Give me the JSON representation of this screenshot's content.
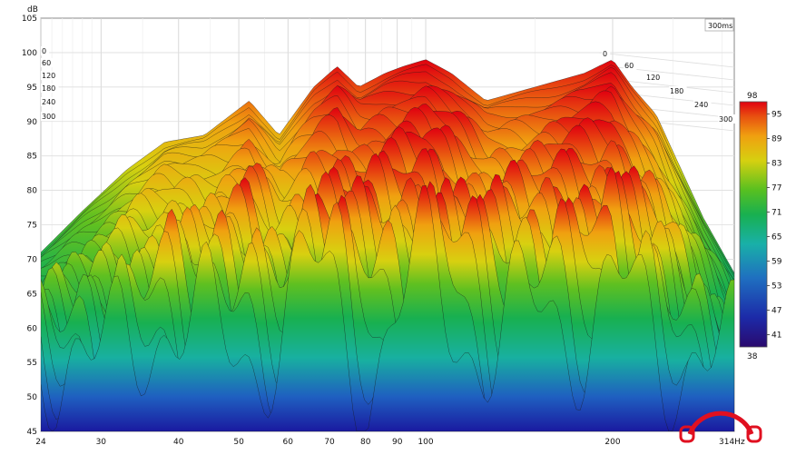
{
  "chart_data": {
    "type": "waterfall-3d",
    "ylabel": "dB",
    "ylim": [
      45,
      105
    ],
    "y_ticks": [
      "105",
      "100",
      "95",
      "90",
      "85",
      "80",
      "75",
      "70",
      "65",
      "60",
      "55",
      "50",
      "45"
    ],
    "xscale": "log",
    "xlim": [
      24,
      314
    ],
    "x_ticks": [
      {
        "label": "24",
        "value": 24
      },
      {
        "label": "30",
        "value": 30
      },
      {
        "label": "40",
        "value": 40
      },
      {
        "label": "50",
        "value": 50
      },
      {
        "label": "60",
        "value": 60
      },
      {
        "label": "70",
        "value": 70
      },
      {
        "label": "80",
        "value": 80
      },
      {
        "label": "90",
        "value": 90
      },
      {
        "label": "100",
        "value": 100
      },
      {
        "label": "200",
        "value": 200
      }
    ],
    "x_end_label": "314Hz",
    "time_range_label": "300ms",
    "time_labels_left": [
      "0",
      "60",
      "120",
      "180",
      "240",
      "300"
    ],
    "time_labels_right": [
      "0",
      "60",
      "120",
      "180",
      "240",
      "300"
    ],
    "colorbar": {
      "max_label": "98",
      "min_label": "38",
      "tick_labels": [
        "95",
        "89",
        "83",
        "77",
        "71",
        "65",
        "59",
        "53",
        "47",
        "41"
      ],
      "range": [
        38,
        98
      ],
      "colors": [
        "#2a0a6e",
        "#1c2aa8",
        "#1f6fc0",
        "#19b0a8",
        "#18b050",
        "#58c020",
        "#d6d010",
        "#f0a010",
        "#e85010",
        "#e00010"
      ]
    },
    "grid": true,
    "peaks": [
      {
        "freq": 24,
        "level": 71
      },
      {
        "freq": 28,
        "level": 77
      },
      {
        "freq": 33,
        "level": 83
      },
      {
        "freq": 38,
        "level": 87
      },
      {
        "freq": 44,
        "level": 88
      },
      {
        "freq": 52,
        "level": 93
      },
      {
        "freq": 58,
        "level": 88
      },
      {
        "freq": 66,
        "level": 95
      },
      {
        "freq": 72,
        "level": 98
      },
      {
        "freq": 78,
        "level": 95
      },
      {
        "freq": 86,
        "level": 97
      },
      {
        "freq": 92,
        "level": 98
      },
      {
        "freq": 100,
        "level": 99
      },
      {
        "freq": 110,
        "level": 97
      },
      {
        "freq": 125,
        "level": 93
      },
      {
        "freq": 150,
        "level": 95
      },
      {
        "freq": 180,
        "level": 97
      },
      {
        "freq": 200,
        "level": 99
      },
      {
        "freq": 215,
        "level": 95
      },
      {
        "freq": 235,
        "level": 91
      },
      {
        "freq": 255,
        "level": 84
      },
      {
        "freq": 280,
        "level": 76
      },
      {
        "freq": 314,
        "level": 68
      }
    ]
  }
}
